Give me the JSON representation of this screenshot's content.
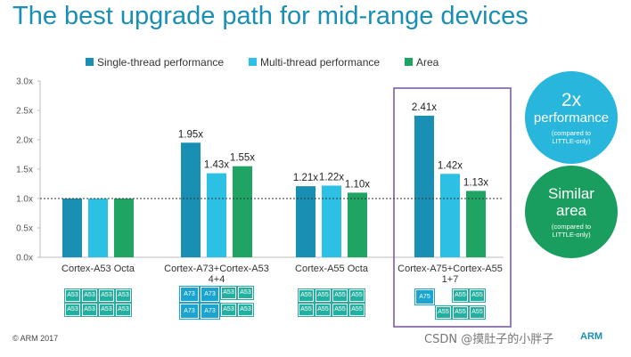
{
  "page": {
    "title": "The best upgrade path for mid-range devices",
    "copyright": "© ARM 2017",
    "watermark": "CSDN @摸肚子的小胖子",
    "logo_text": "ARM"
  },
  "chart_data": {
    "type": "bar",
    "title": "The best upgrade path for mid-range devices",
    "categories": [
      "Cortex-A53 Octa",
      "Cortex-A73+Cortex-A53 4+4",
      "Cortex-A55 Octa",
      "Cortex-A75+Cortex-A55 1+7"
    ],
    "category_lines": [
      [
        "Cortex-A53 Octa"
      ],
      [
        "Cortex-A73+Cortex-A53",
        "4+4"
      ],
      [
        "Cortex-A55 Octa"
      ],
      [
        "Cortex-A75+Cortex-A55",
        "1+7"
      ]
    ],
    "series": [
      {
        "name": "Single-thread performance",
        "color": "#1a8fb4",
        "values": [
          1.0,
          1.95,
          1.21,
          2.41
        ],
        "labels": [
          "",
          "1.95x",
          "1.21x",
          "2.41x"
        ]
      },
      {
        "name": "Multi-thread performance",
        "color": "#2bc0e4",
        "values": [
          1.0,
          1.43,
          1.22,
          1.42
        ],
        "labels": [
          "",
          "1.43x",
          "1.22x",
          "1.42x"
        ]
      },
      {
        "name": "Area",
        "color": "#1fa463",
        "values": [
          1.0,
          1.55,
          1.1,
          1.13
        ],
        "labels": [
          "",
          "1.55x",
          "1.10x",
          "1.13x"
        ]
      }
    ],
    "ylim": [
      0,
      3.0
    ],
    "yticks": [
      0,
      0.5,
      1.0,
      1.5,
      2.0,
      2.5,
      3.0
    ],
    "ytick_labels": [
      "0.0x",
      "0.5x",
      "1.0x",
      "1.5x",
      "2.0x",
      "2.5x",
      "3.0x"
    ],
    "reference_line": 1.0,
    "highlighted_category": "Cortex-A75+Cortex-A55 1+7",
    "legend_position": "top",
    "xlabel": "",
    "ylabel": ""
  },
  "core_diagrams": [
    {
      "category": "Cortex-A53 Octa",
      "rows": [
        [
          "A53",
          "A53",
          "A53",
          "A53"
        ],
        [
          "A53",
          "A53",
          "A53",
          "A53"
        ]
      ]
    },
    {
      "category": "Cortex-A73+Cortex-A53 4+4",
      "rows": [
        [
          "A73",
          "A73",
          "A53",
          "A53"
        ],
        [
          "A73",
          "A73",
          "A53",
          "A53"
        ]
      ]
    },
    {
      "category": "Cortex-A55 Octa",
      "rows": [
        [
          "A55",
          "A55",
          "A55",
          "A55"
        ],
        [
          "A55",
          "A55",
          "A55",
          "A55"
        ]
      ]
    },
    {
      "category": "Cortex-A75+Cortex-A55 1+7",
      "rows": [
        [
          "A75",
          "",
          "A55",
          "A55"
        ],
        [
          "",
          "A55",
          "A55",
          "A55"
        ]
      ]
    }
  ],
  "callouts": {
    "performance": {
      "headline": "2x",
      "subline": "performance",
      "note_1": "(compared to",
      "note_2": "LITTLE-only)"
    },
    "area": {
      "headline_1": "Similar",
      "headline_2": "area",
      "note_1": "(compared to",
      "note_2": "LITTLE-only)"
    }
  }
}
